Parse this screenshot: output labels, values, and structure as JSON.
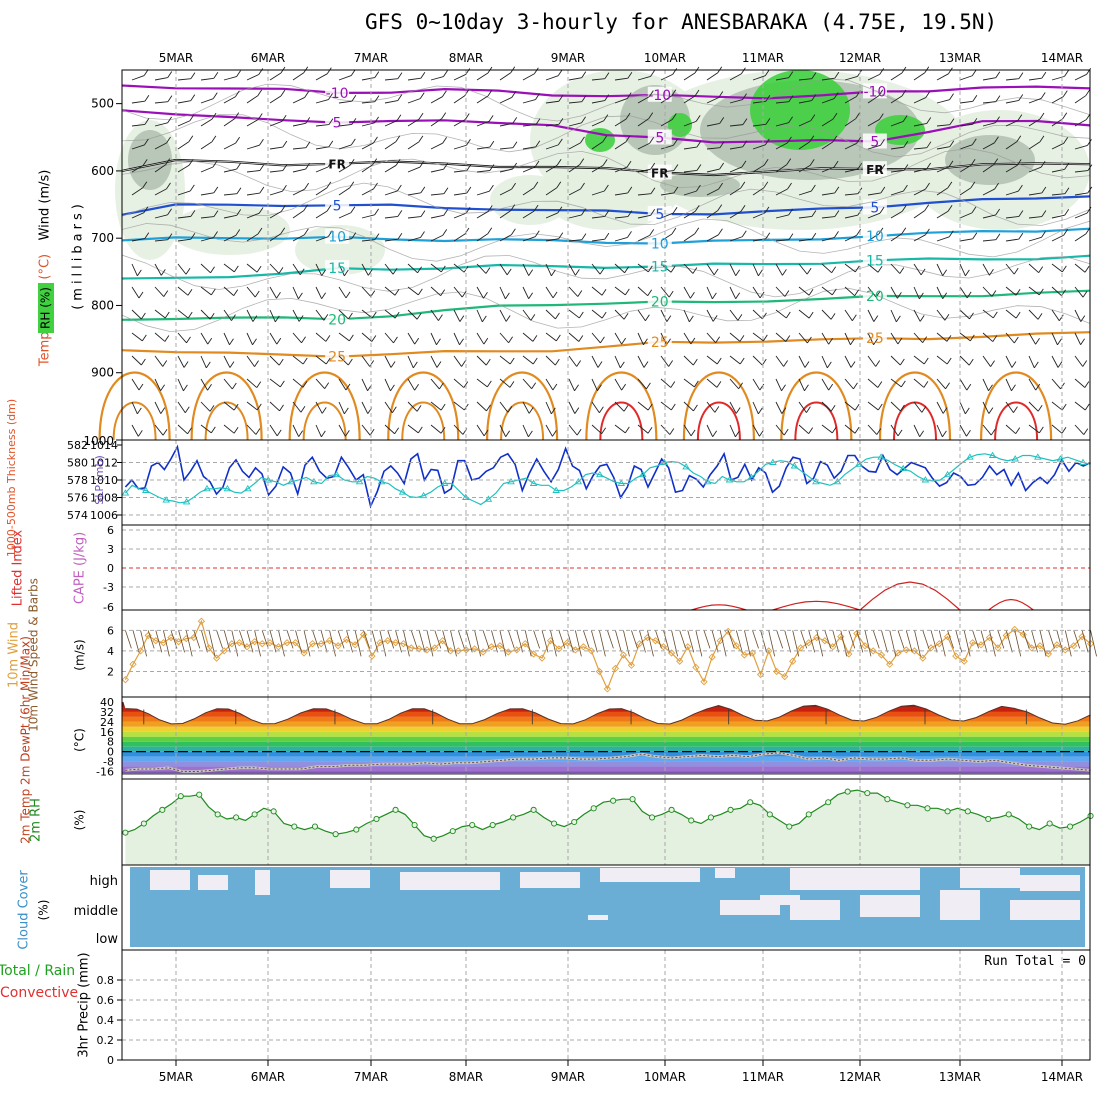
{
  "title": "GFS 0~10day 3-hourly for ANESBARAKA (4.75E, 19.5N)",
  "colors": {
    "temp_cold": "#9a0fb8",
    "temp_blue": "#2050d0",
    "temp_cyan": "#1fa0d8",
    "temp_teal": "#18b8a8",
    "temp_green": "#20b878",
    "temp_orange": "#e08a20",
    "temp_red": "#e02a2a",
    "rh_light": "#e4efe0",
    "rh_mid": "#a8b8a8",
    "rh_green": "#40d040",
    "slp": "#1030c8",
    "thickness": "#20c0c0",
    "wind": "#e0a040",
    "rh2m": "#208a20",
    "cloud": "#6aaed6"
  },
  "chart_data": [
    {
      "id": "upper_air",
      "type": "contour",
      "x_dates": [
        "5MAR",
        "6MAR",
        "7MAR",
        "8MAR",
        "9MAR",
        "10MAR",
        "11MAR",
        "12MAR",
        "13MAR",
        "14MAR"
      ],
      "y_label": "(millibars)",
      "side_labels": [
        "RH (%)",
        "Temperature (°C)",
        "Wind (m/s)"
      ],
      "yticks": [
        500,
        600,
        700,
        800,
        900,
        1000
      ],
      "ylim": [
        450,
        1000
      ],
      "isotherms": [
        {
          "value": -10,
          "label": "-10",
          "color_key": "temp_cold",
          "p": [
            473,
            475,
            478,
            480,
            483,
            482,
            480,
            482,
            486,
            488,
            489,
            490,
            490,
            488,
            484,
            481,
            474,
            476,
            479
          ]
        },
        {
          "value": -5,
          "label": "5",
          "color_key": "temp_cold",
          "p": [
            508,
            515,
            522,
            525,
            526,
            526,
            527,
            528,
            530,
            548,
            552,
            556,
            555,
            556,
            557,
            540,
            526,
            528,
            532
          ]
        },
        {
          "value": 0,
          "label": "FR",
          "color_key": "black",
          "p": [
            598,
            585,
            588,
            590,
            588,
            588,
            590,
            592,
            594,
            598,
            602,
            604,
            602,
            598,
            596,
            596,
            592,
            590,
            588
          ]
        },
        {
          "value": 5,
          "label": "5",
          "color_key": "temp_blue",
          "p": [
            665,
            652,
            650,
            650,
            652,
            652,
            654,
            656,
            660,
            660,
            662,
            664,
            662,
            656,
            652,
            648,
            644,
            640,
            636
          ]
        },
        {
          "value": 10,
          "label": "10",
          "color_key": "temp_cyan",
          "p": [
            705,
            700,
            698,
            700,
            700,
            702,
            702,
            702,
            705,
            706,
            706,
            705,
            704,
            700,
            696,
            694,
            690,
            688,
            686
          ]
        },
        {
          "value": 15,
          "label": "15",
          "color_key": "temp_teal",
          "p": [
            762,
            758,
            756,
            754,
            746,
            745,
            744,
            742,
            742,
            742,
            742,
            740,
            738,
            736,
            734,
            732,
            730,
            730,
            728
          ]
        },
        {
          "value": 20,
          "label": "20",
          "color_key": "temp_green",
          "p": [
            822,
            818,
            818,
            820,
            820,
            814,
            808,
            802,
            798,
            796,
            796,
            796,
            792,
            790,
            788,
            786,
            784,
            782,
            780
          ]
        },
        {
          "value": 25,
          "label": "25",
          "color_key": "temp_orange",
          "p": [
            865,
            868,
            872,
            874,
            874,
            872,
            870,
            868,
            866,
            862,
            856,
            854,
            852,
            852,
            850,
            848,
            846,
            844,
            840
          ]
        }
      ],
      "fr_label": "FR"
    },
    {
      "id": "slp_thickness",
      "type": "line",
      "left_label": "1000-500mb Thickness (dm)",
      "right_label": "SLP (mb)",
      "thickness_ticks": [
        574,
        576,
        578,
        580,
        582
      ],
      "slp_ticks": [
        1006,
        1008,
        1010,
        1012,
        1014
      ],
      "series": [
        {
          "name": "SLP (mb)",
          "axis": "slp",
          "color_key": "slp",
          "values": [
            1009.2,
            1010.0,
            1009.0,
            1009.1,
            1011.6,
            1012.0,
            1011.2,
            1012.4,
            1013.8,
            1010.0,
            1011.0,
            1012.2,
            1010.4,
            1009.8,
            1008.4,
            1009.2,
            1011.4,
            1012.3,
            1011.0,
            1010.3,
            1011.4,
            1010.7,
            1008.3,
            1009.3,
            1011.5,
            1010.8,
            1008.4,
            1011.7,
            1012.6,
            1011.0,
            1010.2,
            1010.4,
            1012.6,
            1011.4,
            1010.0,
            1010.6,
            1007.0,
            1008.7,
            1011.0,
            1011.6,
            1010.8,
            1009.6,
            1012.4,
            1013.0,
            1010.0,
            1011.2,
            1011.1,
            1008.5,
            1009.0,
            1012.2,
            1012.2,
            1010.0,
            1010.2,
            1011.0,
            1011.4,
            1012.6,
            1013.0,
            1011.8,
            1008.8,
            1010.8,
            1012.4,
            1011.0,
            1009.8,
            1011.2,
            1013.6,
            1011.6,
            1011.1,
            1009.0,
            1010.5,
            1011.6,
            1011.8,
            1010.3,
            1008.0,
            1009.2,
            1011.6,
            1011.2,
            1009.2,
            1010.8,
            1012.4,
            1011.4,
            1008.6,
            1008.8,
            1010.5,
            1010.1,
            1009.2,
            1010.6,
            1011.6,
            1013.0,
            1010.0,
            1010.3,
            1011.8,
            1010.0,
            1011.4,
            1010.8,
            1008.6,
            1009.3,
            1011.4,
            1012.6,
            1012.4,
            1009.6,
            1010.2,
            1012.1,
            1011.7,
            1010.2,
            1011.0,
            1012.8,
            1012.8,
            1011.6,
            1011.0,
            1010.9,
            1012.8,
            1011.2,
            1010.6,
            1011.3,
            1012.0,
            1011.7,
            1011.4,
            1010.2,
            1009.3,
            1009.7,
            1010.8,
            1010.4,
            1009.4,
            1009.5,
            1010.3,
            1011.6,
            1010.6,
            1011.2,
            1009.4,
            1010.8,
            1008.8,
            1009.7,
            1010.3,
            1009.6,
            1010.6,
            1012.3,
            1011.0,
            1012.0,
            1011.6,
            1012.0
          ]
        },
        {
          "name": "1000-500mb Thickness (dm)",
          "axis": "thk",
          "color_key": "thickness",
          "values": [
            576.5,
            577.4,
            577.0,
            576.8,
            576.4,
            576.0,
            575.7,
            575.6,
            575.4,
            575.5,
            576.0,
            576.6,
            577.0,
            577.0,
            577.1,
            577.0,
            576.6,
            576.5,
            577.0,
            577.6,
            578.3,
            578.0,
            577.8,
            577.4,
            577.8,
            578.0,
            578.3,
            577.8,
            577.6,
            578.5,
            578.6,
            578.0,
            577.8,
            577.8,
            578.4,
            578.2,
            577.8,
            577.6,
            577.0,
            576.6,
            576.1,
            576.0,
            576.2,
            576.6,
            577.2,
            577.6,
            577.6,
            576.8,
            576.0,
            575.6,
            575.2,
            575.8,
            576.5,
            577.6,
            577.8,
            578.0,
            578.2,
            577.6,
            577.4,
            577.4,
            576.8,
            576.8,
            577.2,
            577.8,
            578.6,
            578.8,
            578.6,
            578.2,
            577.8,
            577.6,
            577.6,
            578.2,
            578.6,
            579.4,
            579.6,
            580.0,
            580.1,
            580.0,
            579.5,
            578.8,
            578.4,
            577.8,
            577.6,
            578.4,
            578.0,
            577.8,
            577.8,
            578.3,
            579.0,
            579.8,
            580.0,
            580.2,
            580.1,
            579.6,
            579.0,
            578.4,
            577.8,
            577.6,
            577.4,
            577.8,
            578.6,
            579.2,
            579.8,
            580.4,
            580.6,
            580.6,
            580.2,
            579.7,
            579.3,
            579.0,
            578.4,
            578.0,
            577.9,
            578.0,
            578.6,
            579.3,
            580.0,
            580.6,
            580.9,
            581.0,
            580.8,
            580.4,
            580.2,
            580.4,
            580.8,
            580.8,
            580.6,
            580.4,
            580.2,
            580.4,
            580.6,
            580.3,
            580.0,
            579.8
          ]
        }
      ]
    },
    {
      "id": "lifted_index",
      "type": "line",
      "left_label": "Lifted Index",
      "right_label": "CAPE (J/kg)",
      "yticks": [
        "6",
        "3",
        "0",
        "-3",
        "-6"
      ],
      "ylim": [
        -6,
        6
      ],
      "cape_bumps": [
        {
          "x_day": 5.55,
          "width": 0.28,
          "peak": 0.3
        },
        {
          "x_day": 6.55,
          "width": 0.45,
          "peak": 0.5
        },
        {
          "x_day": 7.5,
          "width": 0.5,
          "peak": 1.6
        },
        {
          "x_day": 8.5,
          "width": 0.22,
          "peak": 0.6
        }
      ]
    },
    {
      "id": "wind10m",
      "type": "line",
      "left_label": "10m Wind Speed & Barbs",
      "unit_label": "(m/s)",
      "yticks": [
        2,
        4,
        6
      ],
      "ylim": [
        0,
        7.5
      ],
      "values": [
        1.2,
        2.7,
        4.0,
        5.5,
        5.0,
        4.8,
        5.3,
        4.9,
        5.2,
        5.3,
        6.9,
        4.3,
        3.3,
        4.0,
        4.7,
        4.8,
        4.4,
        4.9,
        4.7,
        4.8,
        4.4,
        4.8,
        4.8,
        3.8,
        4.7,
        4.7,
        5.0,
        4.5,
        5.1,
        4.6,
        5.6,
        3.5,
        4.8,
        5.0,
        4.8,
        4.7,
        4.3,
        4.2,
        4.1,
        4.3,
        5.0,
        4.0,
        4.0,
        4.1,
        4.2,
        3.9,
        4.4,
        4.5,
        3.9,
        4.1,
        4.7,
        3.7,
        3.3,
        5.0,
        4.2,
        4.8,
        4.1,
        4.4,
        4.0,
        2.0,
        0.3,
        2.3,
        3.6,
        2.6,
        4.7,
        5.3,
        5.0,
        4.4,
        3.8,
        3.0,
        4.4,
        2.4,
        1.0,
        3.4,
        5.0,
        5.9,
        4.5,
        3.6,
        3.8,
        1.7,
        4.0,
        2.0,
        1.5,
        3.0,
        4.3,
        4.8,
        5.3,
        5.0,
        4.4,
        5.4,
        3.7,
        5.7,
        4.5,
        4.0,
        3.6,
        2.7,
        3.8,
        4.1,
        4.0,
        3.3,
        4.3,
        4.7,
        5.4,
        3.5,
        3.0,
        4.8,
        4.6,
        5.3,
        4.3,
        5.5,
        6.1,
        5.6,
        4.3,
        4.5,
        3.7,
        4.6,
        4.1,
        4.5,
        5.4,
        4.7
      ]
    },
    {
      "id": "temp2m",
      "type": "area",
      "left_label": "2m Temp 2m DewPt (6hr Min/Max)",
      "unit_label": "(°C)",
      "yticks": [
        "40",
        "32",
        "24",
        "16",
        "8",
        "0",
        "-8",
        "-16"
      ],
      "temp_min": 22,
      "temp_max": 35,
      "dewpt": [
        -15,
        -14,
        -14,
        -13,
        -16,
        -16,
        -15,
        -14,
        -13,
        -13,
        -14,
        -14,
        -14,
        -12,
        -12,
        -11,
        -11,
        -10,
        -10,
        -10,
        -9,
        -10,
        -9,
        -9,
        -8,
        -7,
        -6,
        -6,
        -5,
        -5,
        -6,
        -6,
        -5,
        -4,
        -2,
        -4,
        -5,
        -4,
        -3,
        -4,
        -3,
        -4,
        -2,
        -1,
        -3,
        -6,
        -5,
        -7,
        -5,
        -6,
        -6,
        -5,
        -7,
        -7,
        -6,
        -7,
        -8,
        -7,
        -9,
        -11,
        -12,
        -13,
        -14,
        -15
      ]
    },
    {
      "id": "rh2m",
      "type": "line",
      "left_label": "2m RH",
      "unit_label": "(%)",
      "values": [
        18,
        20,
        24,
        29,
        33,
        37,
        42,
        42,
        43,
        35,
        30,
        27,
        28,
        26,
        30,
        34,
        32,
        24,
        22,
        20,
        22,
        19,
        17,
        18,
        20,
        24,
        27,
        30,
        33,
        30,
        23,
        16,
        14,
        16,
        19,
        22,
        23,
        20,
        23,
        25,
        28,
        30,
        33,
        28,
        24,
        22,
        25,
        30,
        34,
        38,
        39,
        40,
        40,
        32,
        28,
        30,
        33,
        30,
        26,
        24,
        28,
        30,
        33,
        34,
        38,
        36,
        30,
        26,
        22,
        24,
        30,
        34,
        38,
        43,
        45,
        46,
        44,
        44,
        40,
        38,
        36,
        36,
        34,
        34,
        32,
        34,
        32,
        30,
        27,
        28,
        30,
        27,
        22,
        20,
        24,
        21,
        22,
        25,
        29
      ]
    },
    {
      "id": "cloud_cover",
      "type": "bar",
      "left_label": "Cloud Cover",
      "unit_label": "(%)",
      "levels": [
        "high",
        "middle",
        "low"
      ]
    },
    {
      "id": "precip",
      "type": "bar",
      "left_label": "3hr Precip (mm)",
      "side_label_a": "Total / Rain",
      "side_label_b": "Convective",
      "yticks": [
        "0",
        "0.2",
        "0.4",
        "0.6",
        "0.8"
      ],
      "ylim": [
        0,
        1
      ],
      "run_total": "Run Total = 0",
      "x_dates": [
        "5MAR",
        "6MAR",
        "7MAR",
        "8MAR",
        "9MAR",
        "10MAR",
        "11MAR",
        "12MAR",
        "13MAR",
        "14MAR"
      ]
    }
  ]
}
